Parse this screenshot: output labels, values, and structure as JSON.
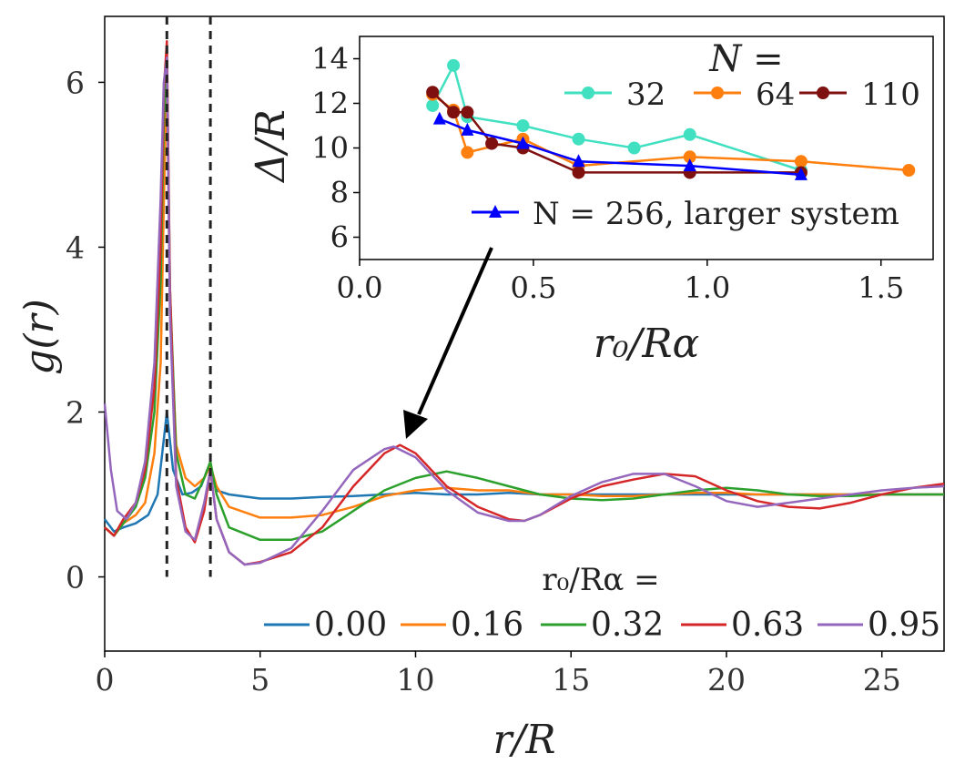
{
  "chart_data": [
    {
      "type": "line",
      "xlabel": "r/R",
      "ylabel": "g(r)",
      "xlim": [
        0,
        27
      ],
      "ylim": [
        -0.9,
        6.8
      ],
      "xticks": [
        "0",
        "5",
        "10",
        "15",
        "20",
        "25"
      ],
      "yticks": [
        "0",
        "2",
        "4",
        "6"
      ],
      "legend_title": "r₀/Rα =",
      "vlines": [
        2.0,
        3.4
      ],
      "series": [
        {
          "name": "0.00",
          "color": "#1f77b4",
          "x": [
            0,
            0.3,
            0.6,
            1,
            1.4,
            1.7,
            1.85,
            2.0,
            2.2,
            2.5,
            2.8,
            3.1,
            3.3,
            3.4,
            3.6,
            4,
            5,
            6,
            7,
            8,
            9,
            10,
            11,
            12,
            13,
            14,
            15,
            16,
            17,
            18,
            19,
            20,
            21,
            22,
            23,
            24,
            25,
            26,
            27
          ],
          "y": [
            0.7,
            0.55,
            0.6,
            0.65,
            0.75,
            1.0,
            1.5,
            2.0,
            1.3,
            1.0,
            1.02,
            1.1,
            1.3,
            1.35,
            1.05,
            1.0,
            0.95,
            0.95,
            0.97,
            0.98,
            1.0,
            1.02,
            1.0,
            1.0,
            1.02,
            1.0,
            1.0,
            1.0,
            1.0,
            1.0,
            1.0,
            1.0,
            1.0,
            1.0,
            1.0,
            1.0,
            1.0,
            1.0,
            1.0
          ]
        },
        {
          "name": "0.16",
          "color": "#ff7f0e",
          "x": [
            0,
            0.3,
            0.6,
            1,
            1.3,
            1.6,
            1.8,
            1.9,
            2.0,
            2.1,
            2.3,
            2.6,
            2.9,
            3.2,
            3.4,
            3.6,
            4,
            5,
            6,
            7,
            8,
            9,
            10,
            11,
            12,
            13,
            14,
            15,
            16,
            17,
            18,
            19,
            20,
            21,
            22,
            23,
            24,
            25,
            26,
            27
          ],
          "y": [
            0.6,
            0.5,
            0.65,
            0.75,
            0.9,
            1.5,
            2.6,
            4.5,
            6.1,
            3.3,
            1.6,
            1.2,
            1.1,
            1.2,
            1.35,
            1.1,
            0.85,
            0.72,
            0.72,
            0.75,
            0.85,
            0.98,
            1.05,
            1.08,
            1.05,
            1.05,
            1.0,
            1.0,
            0.98,
            0.98,
            1.0,
            1.02,
            1.02,
            1.0,
            1.0,
            1.0,
            1.0,
            1.0,
            1.0,
            1.0
          ]
        },
        {
          "name": "0.32",
          "color": "#2ca02c",
          "x": [
            0,
            0.3,
            0.6,
            1,
            1.3,
            1.6,
            1.8,
            1.9,
            2.0,
            2.1,
            2.3,
            2.6,
            2.9,
            3.2,
            3.4,
            3.6,
            4,
            5,
            6,
            7,
            8,
            9,
            10,
            11,
            12,
            13,
            14,
            15,
            16,
            17,
            18,
            19,
            20,
            21,
            22,
            23,
            24,
            25,
            26,
            27
          ],
          "y": [
            0.6,
            0.5,
            0.65,
            0.85,
            1.2,
            2.0,
            3.6,
            5.5,
            6.3,
            3.5,
            1.5,
            1.0,
            0.95,
            1.2,
            1.4,
            1.0,
            0.6,
            0.45,
            0.45,
            0.55,
            0.8,
            1.05,
            1.2,
            1.28,
            1.2,
            1.1,
            1.0,
            0.95,
            0.93,
            0.95,
            1.0,
            1.05,
            1.08,
            1.05,
            1.0,
            0.98,
            0.98,
            1.0,
            1.0,
            1.0
          ]
        },
        {
          "name": "0.63",
          "color": "#d62728",
          "x": [
            0,
            0.3,
            0.6,
            1,
            1.3,
            1.6,
            1.8,
            1.9,
            2.0,
            2.1,
            2.3,
            2.6,
            2.9,
            3.2,
            3.4,
            3.6,
            4,
            4.5,
            5,
            6,
            7,
            8,
            9,
            9.5,
            10,
            11,
            12,
            13,
            13.5,
            14,
            15,
            16,
            17,
            18,
            19,
            20,
            21,
            22,
            23,
            24,
            25,
            26,
            27
          ],
          "y": [
            0.6,
            0.5,
            0.7,
            0.9,
            1.3,
            2.3,
            4.0,
            5.9,
            6.5,
            3.5,
            1.2,
            0.6,
            0.42,
            0.8,
            1.3,
            0.7,
            0.3,
            0.15,
            0.18,
            0.3,
            0.6,
            1.1,
            1.5,
            1.6,
            1.5,
            1.1,
            0.85,
            0.7,
            0.68,
            0.75,
            0.95,
            1.1,
            1.18,
            1.25,
            1.22,
            1.05,
            0.92,
            0.85,
            0.83,
            0.9,
            1.0,
            1.08,
            1.13
          ]
        },
        {
          "name": "0.95",
          "color": "#9467bd",
          "x": [
            0,
            0.2,
            0.4,
            0.7,
            1,
            1.3,
            1.6,
            1.8,
            1.9,
            2.0,
            2.1,
            2.3,
            2.6,
            2.9,
            3.2,
            3.4,
            3.6,
            4,
            4.5,
            5,
            6,
            7,
            8,
            9,
            9.3,
            10,
            11,
            12,
            13,
            13.5,
            14,
            15,
            16,
            17,
            18,
            19,
            20,
            21,
            22,
            23,
            24,
            25,
            26,
            27
          ],
          "y": [
            2.1,
            1.3,
            0.8,
            0.7,
            0.9,
            1.4,
            2.6,
            4.6,
            6.0,
            6.3,
            3.2,
            1.1,
            0.55,
            0.45,
            0.9,
            1.3,
            0.7,
            0.3,
            0.15,
            0.17,
            0.35,
            0.8,
            1.3,
            1.55,
            1.58,
            1.45,
            1.05,
            0.78,
            0.68,
            0.68,
            0.75,
            0.98,
            1.15,
            1.25,
            1.25,
            1.1,
            0.92,
            0.85,
            0.9,
            0.95,
            1.0,
            1.05,
            1.08,
            1.1
          ]
        }
      ]
    },
    {
      "type": "line",
      "inset": true,
      "xlabel": "r₀/Rα",
      "ylabel": "Δ/R",
      "xlim": [
        0.0,
        1.65
      ],
      "ylim": [
        5,
        15
      ],
      "xticks": [
        "0.0",
        "0.5",
        "1.0",
        "1.5"
      ],
      "yticks": [
        "6",
        "8",
        "10",
        "12",
        "14"
      ],
      "legend_title": "N =",
      "series": [
        {
          "name": "32",
          "color": "#40e0c0",
          "marker": "circle",
          "x": [
            0.21,
            0.27,
            0.31,
            0.47,
            0.63,
            0.79,
            0.95,
            1.27
          ],
          "y": [
            11.9,
            13.7,
            11.4,
            11.0,
            10.4,
            10.0,
            10.6,
            9.0
          ]
        },
        {
          "name": "64",
          "color": "#ff7f0e",
          "marker": "circle",
          "x": [
            0.21,
            0.27,
            0.31,
            0.47,
            0.63,
            0.95,
            1.27,
            1.58
          ],
          "y": [
            12.4,
            11.7,
            9.8,
            10.4,
            9.2,
            9.6,
            9.4,
            9.0
          ]
        },
        {
          "name": "110",
          "color": "#7f1010",
          "marker": "circle",
          "x": [
            0.21,
            0.27,
            0.31,
            0.38,
            0.47,
            0.63,
            0.95,
            1.27
          ],
          "y": [
            12.5,
            11.6,
            11.6,
            10.2,
            10.0,
            8.9,
            8.9,
            8.9
          ]
        },
        {
          "name": "N = 256,  larger system",
          "color": "#0000ff",
          "marker": "triangle",
          "x": [
            0.23,
            0.31,
            0.47,
            0.63,
            0.95,
            1.27
          ],
          "y": [
            11.3,
            10.8,
            10.2,
            9.4,
            9.2,
            8.8
          ]
        }
      ]
    }
  ]
}
